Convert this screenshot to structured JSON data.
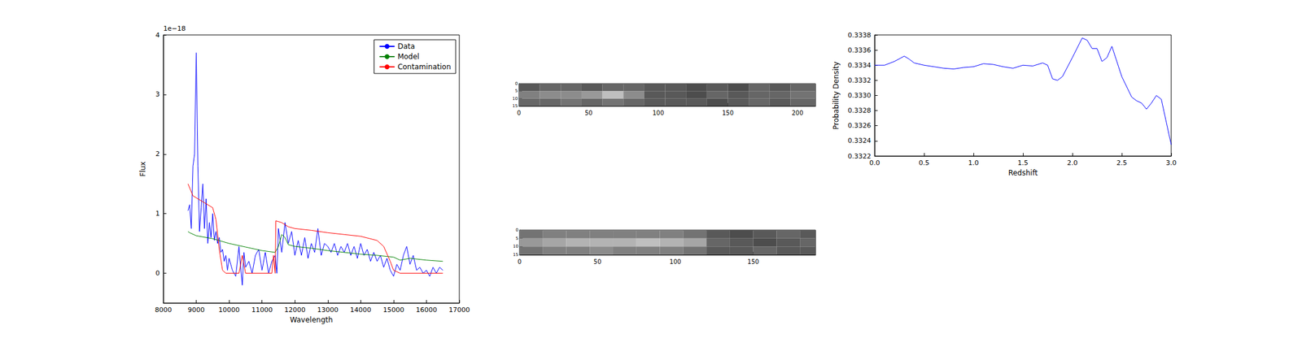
{
  "chart_data": [
    {
      "type": "line",
      "xlabel": "Wavelength",
      "ylabel": "Flux",
      "annotation": "1e−18",
      "xlim": [
        8000,
        17000
      ],
      "xticks": [
        8000,
        9000,
        10000,
        11000,
        12000,
        13000,
        14000,
        15000,
        16000,
        17000
      ],
      "ylim": [
        -0.5,
        4
      ],
      "yticks": [
        0,
        1,
        2,
        3,
        4
      ],
      "legend": "upper right",
      "series": [
        {
          "name": "Data",
          "color": "#0000ff",
          "x": [
            8750,
            8800,
            8850,
            8900,
            8950,
            9000,
            9050,
            9100,
            9150,
            9200,
            9250,
            9300,
            9350,
            9400,
            9450,
            9500,
            9550,
            9600,
            9650,
            9700,
            9750,
            9800,
            9850,
            9900,
            9950,
            10000,
            10100,
            10200,
            10300,
            10350,
            10400,
            10450,
            10500,
            10600,
            10700,
            10800,
            10900,
            11000,
            11100,
            11200,
            11300,
            11400,
            11450,
            11500,
            11600,
            11700,
            11800,
            11900,
            12000,
            12100,
            12200,
            12300,
            12400,
            12500,
            12600,
            12700,
            12800,
            12900,
            13000,
            13100,
            13200,
            13300,
            13400,
            13500,
            13600,
            13700,
            13800,
            13900,
            14000,
            14100,
            14200,
            14300,
            14400,
            14500,
            14600,
            14700,
            14800,
            14900,
            15000,
            15100,
            15200,
            15300,
            15400,
            15500,
            15600,
            15700,
            15800,
            15900,
            16000,
            16100,
            16200,
            16300,
            16400,
            16500
          ],
          "values": [
            1.05,
            1.15,
            0.75,
            1.8,
            2.0,
            3.7,
            1.8,
            0.7,
            1.1,
            1.5,
            0.75,
            1.25,
            0.5,
            0.85,
            0.6,
            1.0,
            0.55,
            0.7,
            0.5,
            0.6,
            0.35,
            0.4,
            0.2,
            0.3,
            0.05,
            0.25,
            0.05,
            -0.05,
            0.45,
            0.1,
            -0.2,
            0.35,
            0.1,
            0.2,
            0.0,
            0.3,
            0.4,
            0.05,
            0.35,
            0.0,
            0.2,
            0.3,
            0.0,
            0.75,
            0.35,
            0.85,
            0.5,
            0.7,
            0.3,
            0.55,
            0.3,
            0.6,
            0.25,
            0.5,
            0.35,
            0.75,
            0.3,
            0.5,
            0.45,
            0.35,
            0.5,
            0.3,
            0.45,
            0.35,
            0.5,
            0.3,
            0.45,
            0.25,
            0.5,
            0.3,
            0.4,
            0.2,
            0.35,
            0.2,
            0.3,
            0.1,
            0.25,
            0.05,
            -0.05,
            0.15,
            0.05,
            0.3,
            0.45,
            0.15,
            0.3,
            0.05,
            0.1,
            0.0,
            0.05,
            -0.05,
            0.1,
            0.0,
            0.1,
            0.05
          ]
        },
        {
          "name": "Model",
          "color": "#008000",
          "x": [
            8750,
            8800,
            9000,
            9500,
            10000,
            10500,
            11000,
            11400,
            11500,
            11600,
            11700,
            11800,
            12000,
            12500,
            13000,
            13500,
            14000,
            14500,
            15000,
            15200,
            15500,
            16000,
            16500
          ],
          "values": [
            0.7,
            0.68,
            0.63,
            0.58,
            0.5,
            0.44,
            0.38,
            0.35,
            0.45,
            0.65,
            0.6,
            0.48,
            0.45,
            0.42,
            0.38,
            0.35,
            0.32,
            0.3,
            0.27,
            0.22,
            0.25,
            0.22,
            0.2
          ]
        },
        {
          "name": "Contamination",
          "color": "#ff0000",
          "x": [
            8750,
            8900,
            9200,
            9500,
            9600,
            9700,
            9800,
            9900,
            10300,
            10400,
            10500,
            11300,
            11350,
            11400,
            11420,
            11600,
            11800,
            12000,
            12500,
            13000,
            13500,
            14000,
            14500,
            14700,
            14900,
            15000,
            15200,
            16500
          ],
          "values": [
            1.5,
            1.3,
            1.2,
            1.1,
            0.9,
            0.4,
            0.05,
            0.0,
            0.0,
            0.3,
            0.0,
            0.0,
            0.3,
            0.0,
            0.88,
            0.85,
            0.78,
            0.75,
            0.72,
            0.68,
            0.65,
            0.62,
            0.55,
            0.45,
            0.2,
            0.05,
            0.0,
            0.0
          ]
        }
      ]
    },
    {
      "type": "heatmap",
      "xlim": [
        0,
        213
      ],
      "xticks": [
        0,
        50,
        100,
        150,
        200
      ],
      "ylim": [
        0,
        15
      ],
      "yticks": [
        0,
        5,
        10,
        15
      ],
      "value_range": [
        0,
        1
      ],
      "x_edges": [
        0,
        15,
        30,
        45,
        60,
        75,
        90,
        105,
        120,
        135,
        150,
        165,
        180,
        195,
        213
      ],
      "y_edges": [
        0,
        5,
        10,
        15
      ],
      "cells": [
        [
          0.35,
          0.4,
          0.4,
          0.35,
          0.4,
          0.4,
          0.35,
          0.35,
          0.3,
          0.35,
          0.3,
          0.4,
          0.35,
          0.4
        ],
        [
          0.5,
          0.55,
          0.55,
          0.6,
          0.75,
          0.55,
          0.35,
          0.35,
          0.3,
          0.4,
          0.35,
          0.4,
          0.4,
          0.45
        ],
        [
          0.4,
          0.4,
          0.45,
          0.4,
          0.45,
          0.4,
          0.35,
          0.35,
          0.35,
          0.3,
          0.35,
          0.4,
          0.35,
          0.4
        ]
      ]
    },
    {
      "type": "heatmap",
      "xlim": [
        0,
        190
      ],
      "xticks": [
        0,
        50,
        100,
        150
      ],
      "ylim": [
        0,
        15
      ],
      "yticks": [
        0,
        5,
        10,
        15
      ],
      "value_range": [
        0,
        1
      ],
      "x_edges": [
        0,
        15,
        30,
        45,
        60,
        75,
        90,
        105,
        120,
        135,
        150,
        165,
        180,
        190
      ],
      "y_edges": [
        0,
        5,
        10,
        15
      ],
      "cells": [
        [
          0.45,
          0.5,
          0.5,
          0.5,
          0.5,
          0.5,
          0.5,
          0.45,
          0.35,
          0.3,
          0.35,
          0.4,
          0.35
        ],
        [
          0.6,
          0.65,
          0.7,
          0.7,
          0.7,
          0.75,
          0.7,
          0.65,
          0.4,
          0.35,
          0.3,
          0.35,
          0.4
        ],
        [
          0.45,
          0.5,
          0.5,
          0.55,
          0.5,
          0.5,
          0.5,
          0.45,
          0.35,
          0.35,
          0.4,
          0.35,
          0.35
        ]
      ]
    },
    {
      "type": "line",
      "xlabel": "Redshift",
      "ylabel": "Probability Density",
      "xlim": [
        0,
        3
      ],
      "xticks": [
        {
          "value": 0,
          "label": "0.0"
        },
        {
          "value": 0.5,
          "label": "0.5"
        },
        {
          "value": 1,
          "label": "1.0"
        },
        {
          "value": 1.5,
          "label": "1.5"
        },
        {
          "value": 2,
          "label": "2.0"
        },
        {
          "value": 2.5,
          "label": "2.5"
        },
        {
          "value": 3,
          "label": "3.0"
        }
      ],
      "ylim": [
        0.3322,
        0.3338
      ],
      "yticks": [
        {
          "value": 0.3322,
          "label": "0.3322"
        },
        {
          "value": 0.3324,
          "label": "0.3324"
        },
        {
          "value": 0.3326,
          "label": "0.3326"
        },
        {
          "value": 0.3328,
          "label": "0.3328"
        },
        {
          "value": 0.333,
          "label": "0.3330"
        },
        {
          "value": 0.3332,
          "label": "0.3332"
        },
        {
          "value": 0.3334,
          "label": "0.3334"
        },
        {
          "value": 0.3336,
          "label": "0.3336"
        },
        {
          "value": 0.3338,
          "label": "0.3338"
        }
      ],
      "series": [
        {
          "color": "#0000ff",
          "x": [
            0,
            0.1,
            0.2,
            0.3,
            0.35,
            0.4,
            0.5,
            0.6,
            0.7,
            0.8,
            0.9,
            1.0,
            1.1,
            1.2,
            1.3,
            1.4,
            1.5,
            1.6,
            1.7,
            1.75,
            1.8,
            1.85,
            1.9,
            2.0,
            2.1,
            2.15,
            2.2,
            2.25,
            2.3,
            2.35,
            2.4,
            2.5,
            2.6,
            2.65,
            2.7,
            2.75,
            2.8,
            2.85,
            2.9,
            3.0
          ],
          "values": [
            0.3334,
            0.3334,
            0.33345,
            0.33352,
            0.33348,
            0.33343,
            0.3334,
            0.33338,
            0.33336,
            0.33335,
            0.33337,
            0.33338,
            0.33342,
            0.33341,
            0.33338,
            0.33336,
            0.3334,
            0.33339,
            0.33343,
            0.3334,
            0.33322,
            0.3332,
            0.33325,
            0.3335,
            0.33376,
            0.33373,
            0.33362,
            0.33362,
            0.33345,
            0.3335,
            0.33365,
            0.33325,
            0.33298,
            0.33293,
            0.3329,
            0.33282,
            0.3329,
            0.333,
            0.33295,
            0.33235
          ]
        }
      ]
    }
  ]
}
